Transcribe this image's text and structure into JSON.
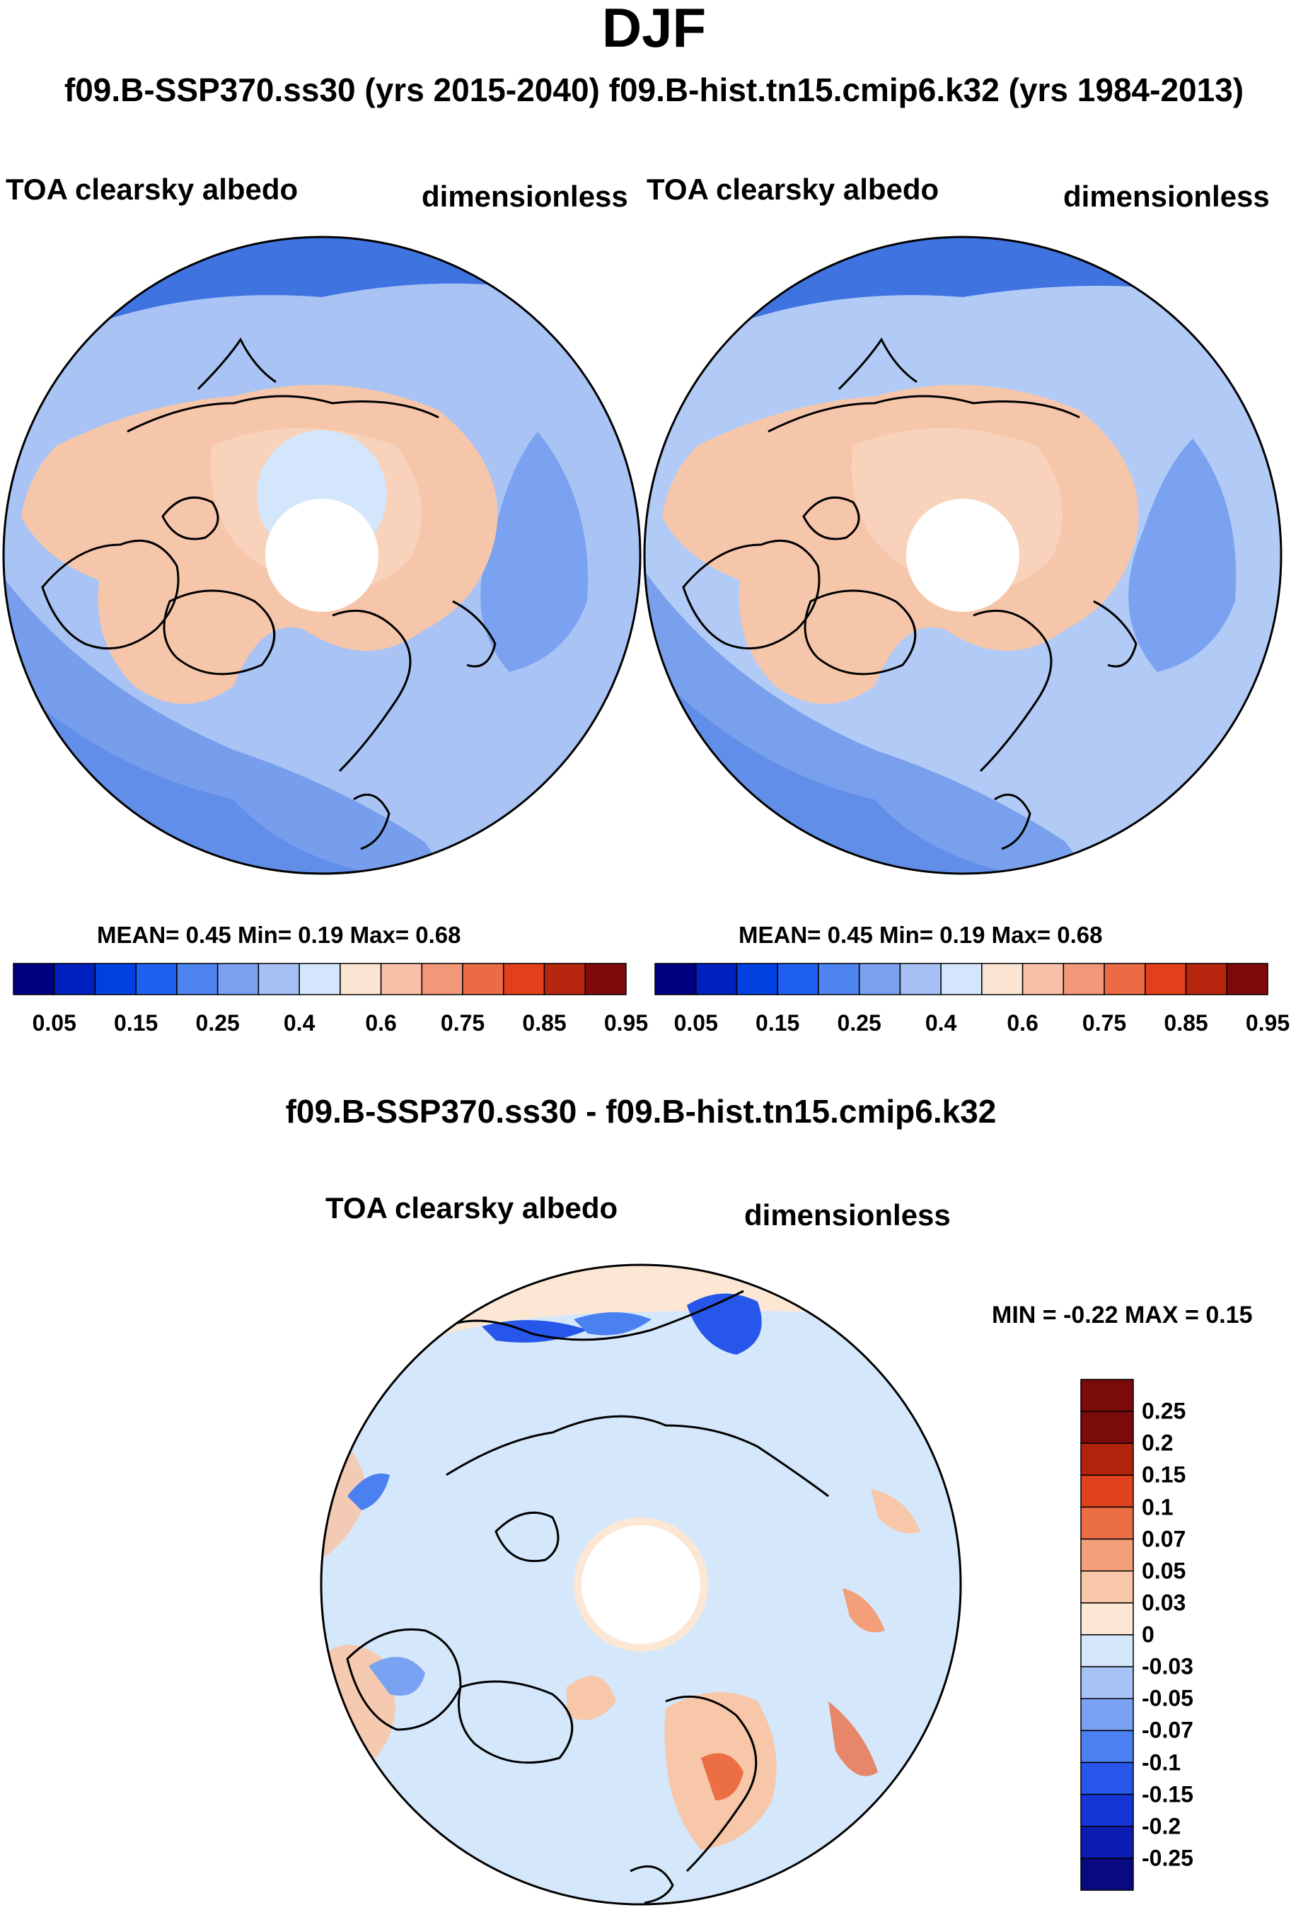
{
  "title": "DJF",
  "subtitle": "f09.B-SSP370.ss30 (yrs 2015-2040)  f09.B-hist.tn15.cmip6.k32 (yrs 1984-2013)",
  "colors": {
    "abs_scale": [
      "#00007f",
      "#0020c0",
      "#0040e0",
      "#2060f0",
      "#4d84ef",
      "#79a1f0",
      "#a6c0f6",
      "#d3e6fb",
      "#fce4d2",
      "#f8c0a6",
      "#f29878",
      "#ec6b45",
      "#e2401c",
      "#b6250e",
      "#7e0a0a"
    ],
    "diff_scale": [
      "#0a0a80",
      "#0c1cb0",
      "#1434d6",
      "#2656ea",
      "#4a80ef",
      "#7aa2f2",
      "#a6c2f6",
      "#d4e7fb",
      "#fce7d5",
      "#f8c6a8",
      "#f39f79",
      "#eb6e44",
      "#e0421d",
      "#b2230d",
      "#7b0b0b"
    ],
    "land_pink": "#f6c6ab",
    "ocean_blue": "#3f73e0"
  },
  "panels": [
    {
      "variable": "TOA clearsky albedo",
      "units": "dimensionless",
      "stats": "MEAN=   0.45  Min=   0.19  Max=   0.68"
    },
    {
      "variable": "TOA clearsky albedo",
      "units": "dimensionless",
      "stats": "MEAN=   0.45  Min=   0.19  Max=   0.68"
    }
  ],
  "diff_panel": {
    "title": "f09.B-SSP370.ss30 - f09.B-hist.tn15.cmip6.k32",
    "variable": "TOA clearsky albedo",
    "units": "dimensionless",
    "minmax": "MIN =  -0.22  MAX =   0.15"
  },
  "chart_data": [
    {
      "type": "heatmap",
      "projection": "north polar stereographic",
      "title": "TOA clearsky albedo",
      "units": "dimensionless",
      "period": "f09.B-SSP370.ss30 (yrs 2015-2040)",
      "mean": 0.45,
      "min": 0.19,
      "max": 0.68,
      "colorbar_levels": [
        "0.05",
        "0.15",
        "0.25",
        "0.4",
        "0.6",
        "0.75",
        "0.85",
        "0.95"
      ]
    },
    {
      "type": "heatmap",
      "projection": "north polar stereographic",
      "title": "TOA clearsky albedo",
      "units": "dimensionless",
      "period": "f09.B-hist.tn15.cmip6.k32 (yrs 1984-2013)",
      "mean": 0.45,
      "min": 0.19,
      "max": 0.68,
      "colorbar_levels": [
        "0.05",
        "0.15",
        "0.25",
        "0.4",
        "0.6",
        "0.75",
        "0.85",
        "0.95"
      ]
    },
    {
      "type": "heatmap",
      "projection": "north polar stereographic",
      "title": "f09.B-SSP370.ss30 - f09.B-hist.tn15.cmip6.k32",
      "units": "dimensionless",
      "min": -0.22,
      "max": 0.15,
      "colorbar_levels": [
        "0.25",
        "0.2",
        "0.15",
        "0.1",
        "0.07",
        "0.05",
        "0.03",
        "0",
        "-0.03",
        "-0.05",
        "-0.07",
        "-0.1",
        "-0.15",
        "-0.2",
        "-0.25"
      ]
    }
  ]
}
